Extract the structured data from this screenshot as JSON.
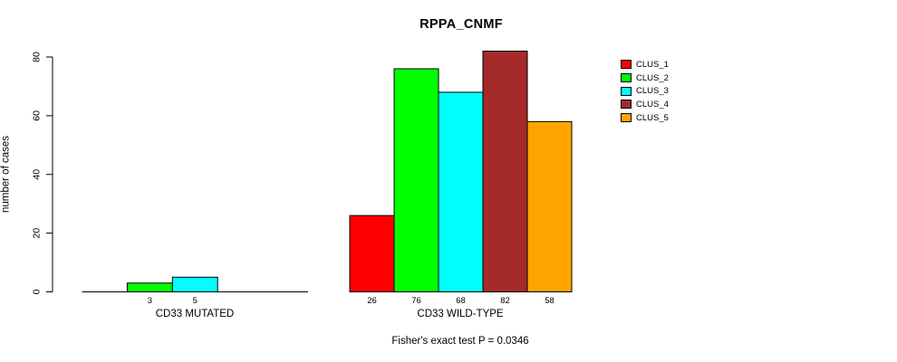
{
  "chart_data": {
    "type": "bar",
    "title": "RPPA_CNMF",
    "ylabel": "number of cases",
    "xlabel": "",
    "ylim": [
      0,
      80
    ],
    "y_ticks": [
      0,
      20,
      40,
      60,
      80
    ],
    "grid": false,
    "legend_position": "right",
    "categories": [
      "CD33 MUTATED",
      "CD33 WILD-TYPE"
    ],
    "series": [
      {
        "name": "CLUS_1",
        "color": "#FF0000",
        "values": [
          0,
          26
        ]
      },
      {
        "name": "CLUS_2",
        "color": "#00FF00",
        "values": [
          3,
          76
        ]
      },
      {
        "name": "CLUS_3",
        "color": "#00FFFF",
        "values": [
          5,
          68
        ]
      },
      {
        "name": "CLUS_4",
        "color": "#A52A2A",
        "values": [
          0,
          82
        ]
      },
      {
        "name": "CLUS_5",
        "color": "#FFA500",
        "values": [
          0,
          58
        ]
      }
    ],
    "bar_value_labels_shown": [
      "3",
      "5",
      "26",
      "76",
      "68",
      "82",
      "58"
    ],
    "zero_bars_labeled": false,
    "caption": "Fisher's exact test P = 0.0346"
  }
}
